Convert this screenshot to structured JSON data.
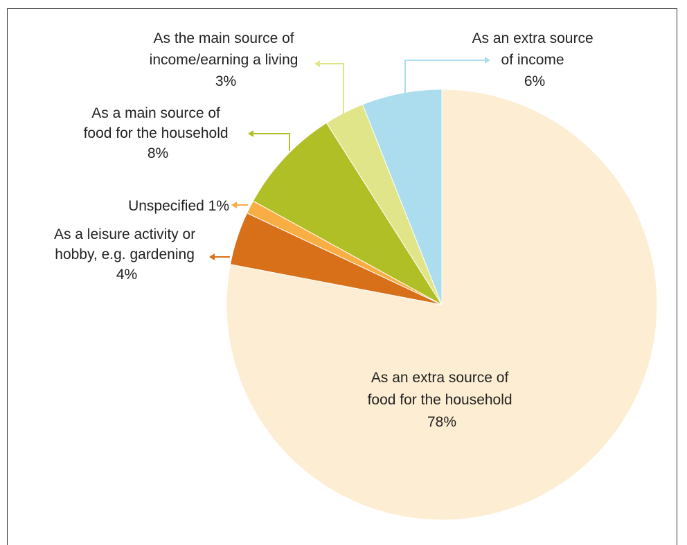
{
  "chart_data": {
    "type": "pie",
    "title": "",
    "start_angle_deg": 0,
    "direction": "clockwise",
    "slices": [
      {
        "label_lines": [
          "As an extra source of",
          "food for the household",
          "78%"
        ],
        "value": 78,
        "color": "#FDEED3"
      },
      {
        "label_lines": [
          "As a leisure activity or",
          "hobby, e.g. gardening",
          "4%"
        ],
        "value": 4,
        "color": "#D8701A"
      },
      {
        "label_lines": [
          "Unspecified 1%"
        ],
        "value": 1,
        "color": "#F9AE45"
      },
      {
        "label_lines": [
          "As a main source of",
          "food for the household",
          "8%"
        ],
        "value": 8,
        "color": "#B1BF26"
      },
      {
        "label_lines": [
          "As the main source of",
          "income/earning a living",
          "3%"
        ],
        "value": 3,
        "color": "#E1E58A"
      },
      {
        "label_lines": [
          "As an extra source",
          "of income",
          "6%"
        ],
        "value": 6,
        "color": "#ABDDEE"
      }
    ],
    "legend": "none"
  }
}
